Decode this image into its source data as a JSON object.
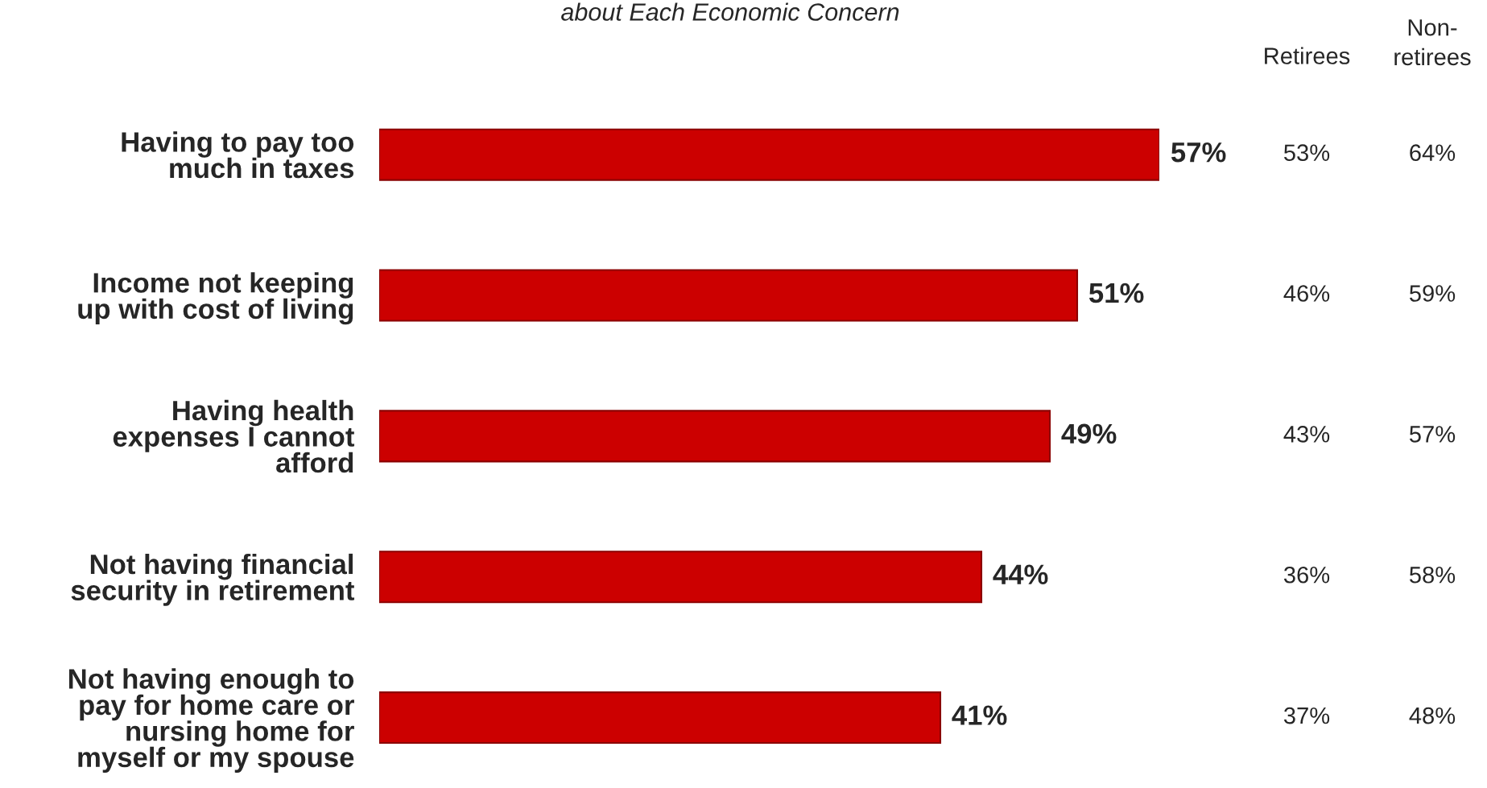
{
  "chart_data": {
    "type": "bar",
    "orientation": "horizontal",
    "title": "about Each Economic Concern",
    "categories": [
      "Having to pay too\nmuch in taxes",
      "Income not keeping\nup with cost of living",
      "Having health\nexpenses I cannot\nafford",
      "Not having financial\nsecurity in retirement",
      "Not having enough to\npay for home care or\nnursing home for\nmyself or my spouse"
    ],
    "values": [
      57,
      51,
      49,
      44,
      41
    ],
    "color": "#cc0000",
    "value_labels": [
      "57%",
      "51%",
      "49%",
      "44%",
      "41%"
    ],
    "annotations": [
      "Retirees",
      "Non-\nretirees",
      "53%",
      "64%",
      "46%",
      "59%",
      "43%",
      "57%",
      "36%",
      "58%",
      "37%",
      "48%"
    ]
  }
}
